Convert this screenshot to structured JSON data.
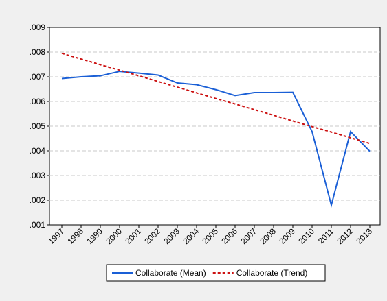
{
  "chart_data": {
    "type": "line",
    "categories": [
      "1997",
      "1998",
      "1999",
      "2000",
      "2001",
      "2002",
      "2003",
      "2004",
      "2005",
      "2006",
      "2007",
      "2008",
      "2009",
      "2010",
      "2011",
      "2012",
      "2013"
    ],
    "series": [
      {
        "name": "Collaborate (Mean)",
        "color": "#1a5fd6",
        "line_style": "solid",
        "values": [
          0.00693,
          0.007,
          0.00704,
          0.00722,
          0.00715,
          0.00707,
          0.00675,
          0.00668,
          0.00648,
          0.00624,
          0.00636,
          0.00636,
          0.00637,
          0.00478,
          0.0018,
          0.00478,
          0.00398
        ]
      },
      {
        "name": "Collaborate (Trend)",
        "color": "#cc1111",
        "line_style": "dashed",
        "values": [
          0.00795,
          0.00772,
          0.00749,
          0.00727,
          0.00704,
          0.00681,
          0.00658,
          0.00635,
          0.00612,
          0.0059,
          0.00567,
          0.00544,
          0.00521,
          0.00498,
          0.00476,
          0.00453,
          0.0043
        ]
      }
    ],
    "ylim": [
      0.001,
      0.009
    ],
    "yticks": [
      {
        "value": 0.001,
        "label": ".001"
      },
      {
        "value": 0.002,
        "label": ".002"
      },
      {
        "value": 0.003,
        "label": ".003"
      },
      {
        "value": 0.004,
        "label": ".004"
      },
      {
        "value": 0.005,
        "label": ".005"
      },
      {
        "value": 0.006,
        "label": ".006"
      },
      {
        "value": 0.007,
        "label": ".007"
      },
      {
        "value": 0.008,
        "label": ".008"
      },
      {
        "value": 0.009,
        "label": ".009"
      }
    ],
    "grid": true,
    "legend": "bottom"
  }
}
